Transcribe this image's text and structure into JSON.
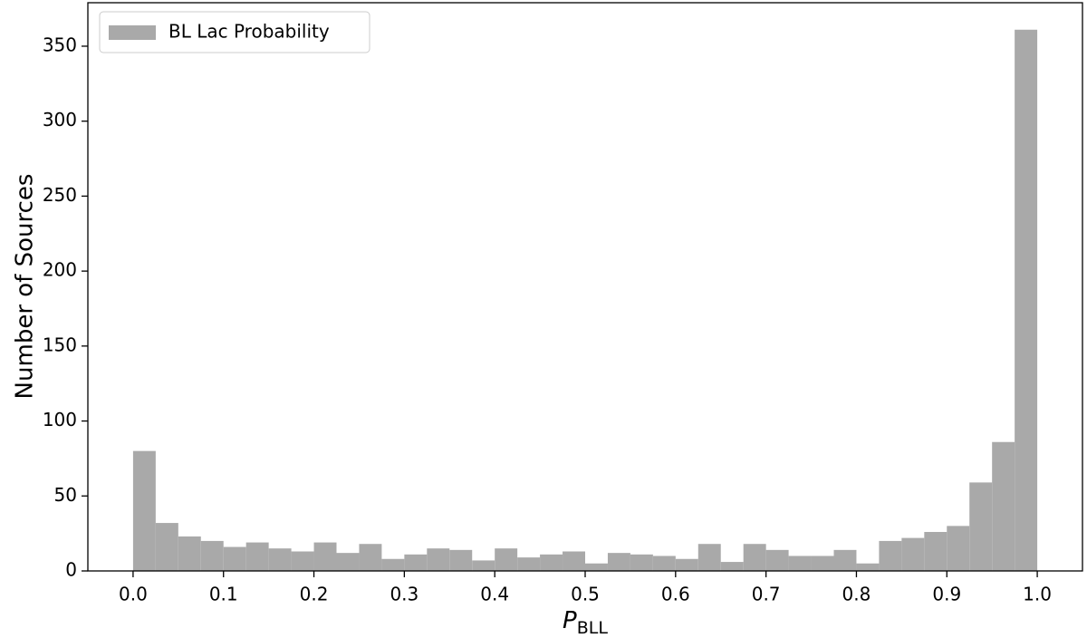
{
  "chart_data": {
    "type": "histogram",
    "x_label": {
      "symbol": "P",
      "subscript": "BLL"
    },
    "y_label": "Number of Sources",
    "bins": [
      0,
      0.025,
      0.05,
      0.075,
      0.1,
      0.125,
      0.15,
      0.175,
      0.2,
      0.225,
      0.25,
      0.275,
      0.3,
      0.325,
      0.35,
      0.375,
      0.4,
      0.425,
      0.45,
      0.475,
      0.5,
      0.525,
      0.55,
      0.575,
      0.6,
      0.625,
      0.65,
      0.675,
      0.7,
      0.725,
      0.75,
      0.775,
      0.8,
      0.825,
      0.85,
      0.875,
      0.9,
      0.925,
      0.95,
      0.975,
      1
    ],
    "series": [
      {
        "name": "BL Lac Probability",
        "color": "#a9a9a9",
        "values": [
          80,
          32,
          23,
          20,
          16,
          19,
          15,
          13,
          19,
          12,
          18,
          8,
          11,
          15,
          14,
          7,
          15,
          9,
          11,
          13,
          5,
          12,
          11,
          10,
          8,
          18,
          6,
          18,
          14,
          10,
          10,
          14,
          5,
          20,
          22,
          26,
          30,
          59,
          86,
          361
        ]
      }
    ],
    "xlim": [
      -0.05,
      1.05
    ],
    "ylim": [
      0,
      379
    ],
    "xticks": [
      {
        "value": 0,
        "label": "0.0"
      },
      0.1,
      0.2,
      0.3,
      0.4,
      0.5,
      0.6,
      0.7,
      0.8,
      0.9,
      {
        "value": 1,
        "label": "1.0"
      }
    ],
    "yticks": [
      0,
      50,
      100,
      150,
      200,
      250,
      300,
      350
    ],
    "legend": "upper left"
  }
}
